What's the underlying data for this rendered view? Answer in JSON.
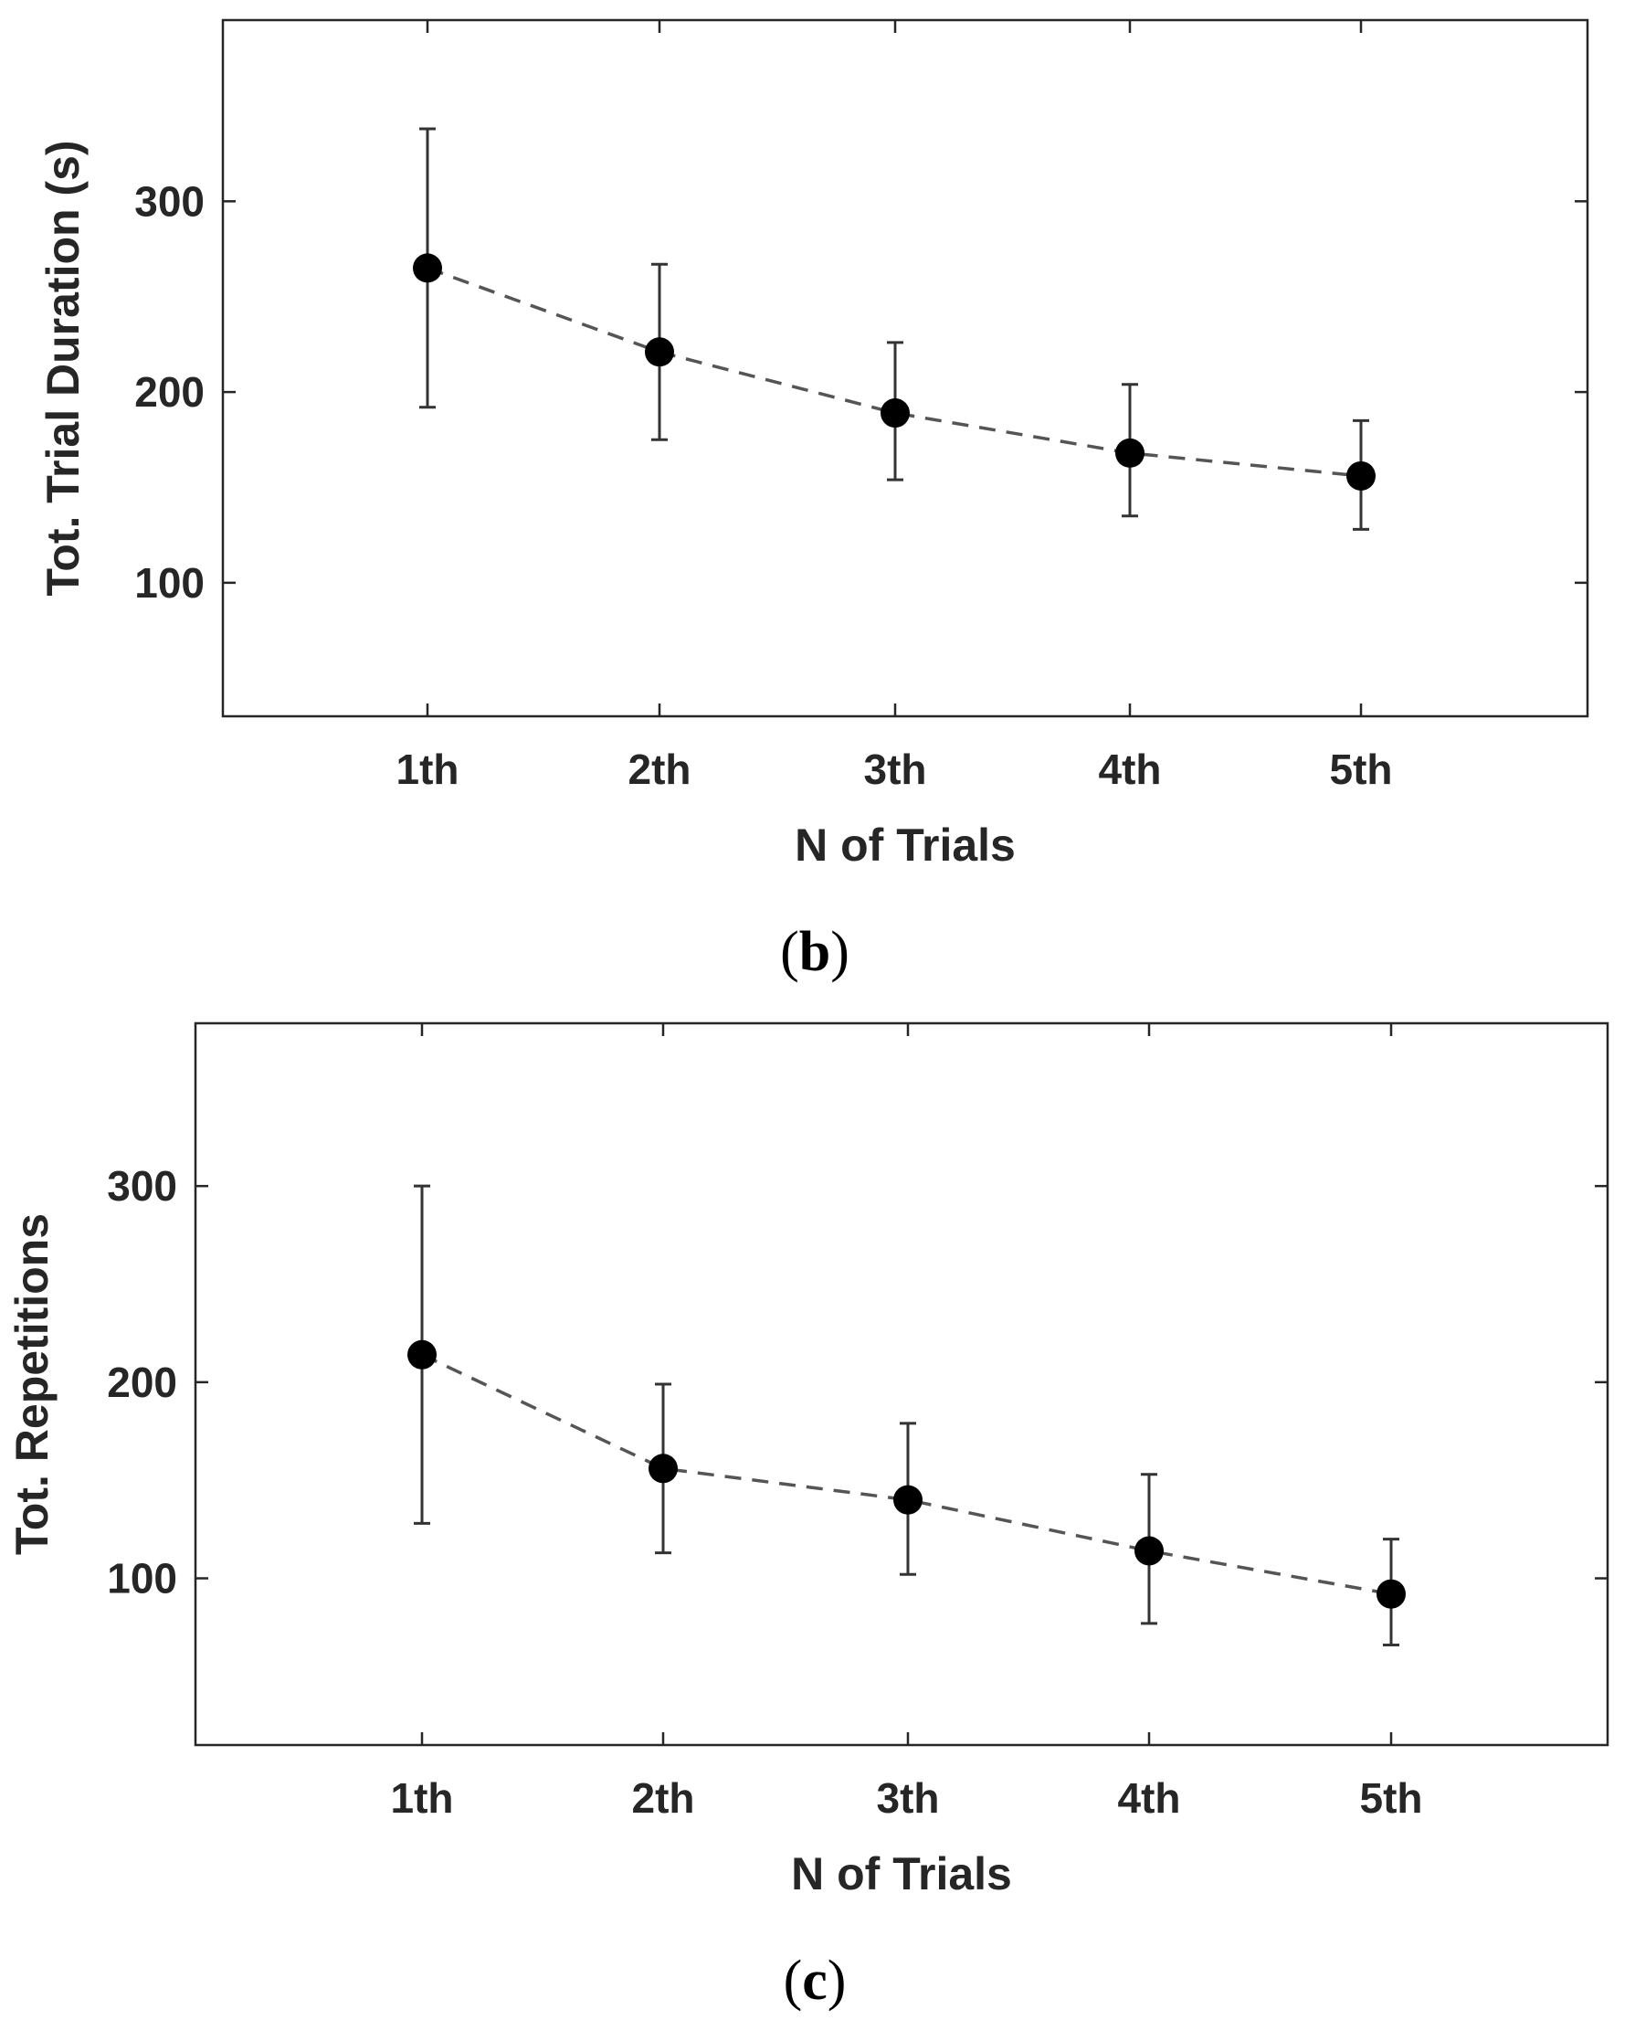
{
  "chart_data": [
    {
      "type": "line",
      "panel": "b",
      "categories": [
        "1th",
        "2th",
        "3th",
        "4th",
        "5th"
      ],
      "series": [
        {
          "name": "Tot. Trial Duration",
          "values": [
            265,
            221,
            189,
            168,
            156
          ],
          "error_upper": [
            338,
            267,
            226,
            204,
            185
          ],
          "error_lower": [
            192,
            175,
            154,
            135,
            128
          ]
        }
      ],
      "title": "",
      "xlabel": "N of Trials",
      "ylabel": "Tot. Trial Duration (s)",
      "ylim": [
        30,
        395
      ],
      "yticks": [
        100,
        200,
        300
      ],
      "grid": false,
      "line_style": "dashed",
      "colors": {
        "line": "#555555",
        "marker": "#000000",
        "error": "#333333",
        "axis": "#262626"
      },
      "caption_open": "(",
      "caption_letter": "b",
      "caption_close": ")"
    },
    {
      "type": "line",
      "panel": "c",
      "categories": [
        "1th",
        "2th",
        "3th",
        "4th",
        "5th"
      ],
      "series": [
        {
          "name": "Tot. Repetitions",
          "values": [
            214,
            156,
            140,
            114,
            92
          ],
          "error_upper": [
            300,
            199,
            179,
            153,
            120
          ],
          "error_lower": [
            128,
            113,
            102,
            77,
            66
          ]
        }
      ],
      "title": "",
      "xlabel": "N of Trials",
      "ylabel": "Tot. Repetitions",
      "ylim": [
        15,
        383
      ],
      "yticks": [
        100,
        200,
        300
      ],
      "grid": false,
      "line_style": "dashed",
      "colors": {
        "line": "#555555",
        "marker": "#000000",
        "error": "#333333",
        "axis": "#262626"
      },
      "caption_open": "(",
      "caption_letter": "c",
      "caption_close": ")"
    }
  ]
}
